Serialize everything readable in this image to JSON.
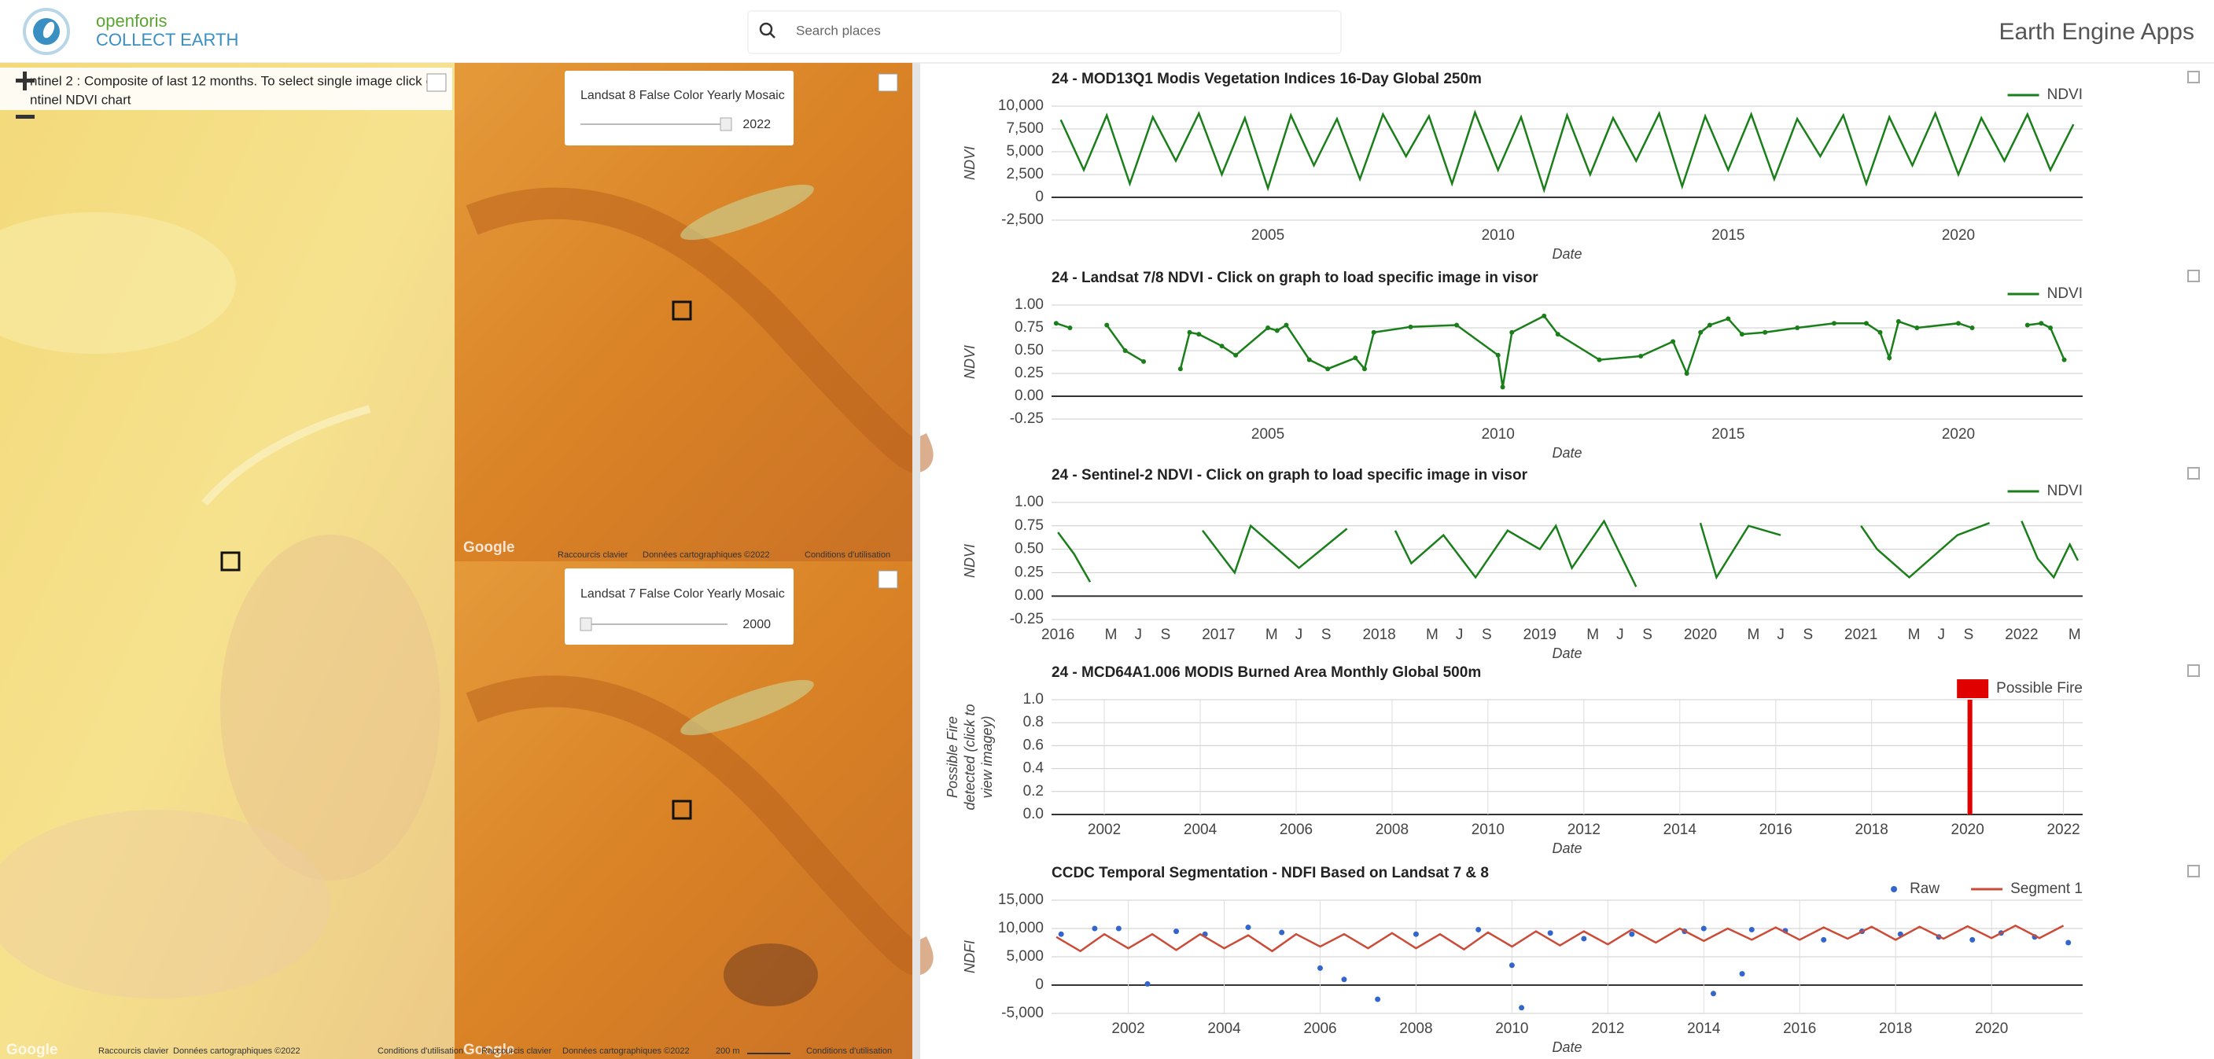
{
  "header": {
    "logo_top": "openforis",
    "logo_bottom": "COLLECT EARTH",
    "search_placeholder": "Search places",
    "app_name": "Earth Engine Apps"
  },
  "maps": [
    {
      "info": [
        "ntinel 2 : Composite of last 12 months. To select single image click c",
        "ntinel NDVI chart"
      ],
      "attribution": [
        "Google",
        "Raccourcis clavier",
        "Données cartographiques ©2022",
        "Conditions d'utilisation"
      ]
    },
    {
      "layer": "Landsat 8 False Color Yearly Mosaic",
      "year": 2022,
      "attribution": [
        "Google",
        "Raccourcis clavier",
        "Données cartographiques ©2022",
        "Conditions d'utilisation"
      ]
    },
    {
      "layer": "Landsat 7 False Color Yearly Mosaic",
      "year": 2000,
      "attribution": [
        "Google",
        "Raccourcis clavier",
        "Données cartographiques ©2022",
        "200 m",
        "Conditions d'utilisation"
      ]
    }
  ],
  "chart_data": [
    {
      "type": "line",
      "title": "24 - MOD13Q1 Modis Vegetation Indices 16-Day Global 250m",
      "xlabel": "Date",
      "ylabel": [
        "NDVI"
      ],
      "xlim": [
        2000.3,
        2022.7
      ],
      "xticks": [
        2005,
        2010,
        2015,
        2020
      ],
      "ylim": [
        -2500,
        10000
      ],
      "yticks": [
        {
          "value": -2500,
          "label": "-2,500"
        },
        0,
        {
          "value": 2500,
          "label": "2,500"
        },
        {
          "value": 5000,
          "label": "5,000"
        },
        {
          "value": 7500,
          "label": "7,500"
        },
        {
          "value": 10000,
          "label": "10,000"
        }
      ],
      "grid": true,
      "xgrid": false,
      "legend": "top-right",
      "series": [
        {
          "name": "NDVI",
          "color": "#1a7f1a",
          "type": "line",
          "x": [
            2000.5,
            2001,
            2001.5,
            2002,
            2002.5,
            2003,
            2003.5,
            2004,
            2004.5,
            2005,
            2005.5,
            2006,
            2006.5,
            2007,
            2007.5,
            2008,
            2008.5,
            2009,
            2009.5,
            2010,
            2010.5,
            2011,
            2011.5,
            2012,
            2012.5,
            2013,
            2013.5,
            2014,
            2014.5,
            2015,
            2015.5,
            2016,
            2016.5,
            2017,
            2017.5,
            2018,
            2018.5,
            2019,
            2019.5,
            2020,
            2020.5,
            2021,
            2021.5,
            2022,
            2022.5
          ],
          "values": [
            8500,
            3000,
            9000,
            1500,
            8800,
            4000,
            9200,
            2500,
            8700,
            1000,
            9000,
            3500,
            8600,
            2000,
            9100,
            4500,
            8900,
            1500,
            9300,
            3000,
            8800,
            800,
            9000,
            2500,
            8700,
            4000,
            9200,
            1200,
            8900,
            3000,
            9100,
            2000,
            8600,
            4500,
            9000,
            1500,
            8800,
            3500,
            9200,
            2500,
            8700,
            4000,
            9100,
            3000,
            8000
          ]
        }
      ]
    },
    {
      "type": "line",
      "title": "24 - Landsat 7/8 NDVI - Click on graph to load specific image in visor",
      "xlabel": "Date",
      "ylabel": [
        "NDVI"
      ],
      "xlim": [
        2000.3,
        2022.7
      ],
      "xticks": [
        2005,
        2010,
        2015,
        2020
      ],
      "ylim": [
        -0.25,
        1
      ],
      "yticks": [
        {
          "value": -0.25,
          "label": "-0.25"
        },
        {
          "value": 0,
          "label": "0.00"
        },
        {
          "value": 0.25,
          "label": "0.25"
        },
        {
          "value": 0.5,
          "label": "0.50"
        },
        {
          "value": 0.75,
          "label": "0.75"
        },
        {
          "value": 1,
          "label": "1.00"
        }
      ],
      "grid": true,
      "xgrid": false,
      "legend": "top-right",
      "series": [
        {
          "name": "NDVI",
          "color": "#1a7f1a",
          "type": "line",
          "markers": true,
          "x": [
            2000.4,
            2000.7,
            2001.0,
            2001.5,
            2001.9,
            2002.3,
            2002.7,
            2003.1,
            2003.3,
            2003.5,
            2004.0,
            2004.3,
            2005.0,
            2005.2,
            2005.4,
            2005.9,
            2006.3,
            2006.9,
            2007.1,
            2007.3,
            2008.1,
            2009.1,
            2010.0,
            2010.1,
            2010.3,
            2011.0,
            2011.3,
            2012.2,
            2013.1,
            2013.8,
            2014.1,
            2014.4,
            2014.6,
            2015.0,
            2015.3,
            2015.8,
            2016.5,
            2017.3,
            2018.0,
            2018.3,
            2018.5,
            2018.7,
            2019.1,
            2020.0,
            2020.3,
            2020.8,
            2021.5,
            2021.8,
            2022.0,
            2022.3
          ],
          "values": [
            0.8,
            0.75,
            null,
            0.78,
            0.5,
            0.38,
            null,
            0.3,
            0.7,
            0.68,
            0.55,
            0.45,
            0.75,
            0.72,
            0.78,
            0.4,
            0.3,
            0.42,
            0.3,
            0.7,
            0.76,
            0.78,
            0.45,
            0.1,
            0.7,
            0.88,
            0.68,
            0.4,
            0.44,
            0.6,
            0.25,
            0.7,
            0.78,
            0.85,
            0.68,
            0.7,
            0.75,
            0.8,
            0.8,
            0.7,
            0.42,
            0.82,
            0.75,
            0.8,
            0.75,
            null,
            0.78,
            0.8,
            0.75,
            0.4
          ]
        }
      ]
    },
    {
      "type": "line",
      "title": "24 - Sentinel-2 NDVI - Click on graph to load specific image in visor",
      "xlabel": "Date",
      "ylabel": [
        "NDVI"
      ],
      "xlim": [
        2015.96,
        2022.38
      ],
      "xticks": [
        2016,
        {
          "value": 2016.33,
          "label": "M"
        },
        {
          "value": 2016.5,
          "label": "J"
        },
        {
          "value": 2016.67,
          "label": "S"
        },
        2017,
        {
          "value": 2017.33,
          "label": "M"
        },
        {
          "value": 2017.5,
          "label": "J"
        },
        {
          "value": 2017.67,
          "label": "S"
        },
        2018,
        {
          "value": 2018.33,
          "label": "M"
        },
        {
          "value": 2018.5,
          "label": "J"
        },
        {
          "value": 2018.67,
          "label": "S"
        },
        2019,
        {
          "value": 2019.33,
          "label": "M"
        },
        {
          "value": 2019.5,
          "label": "J"
        },
        {
          "value": 2019.67,
          "label": "S"
        },
        2020,
        {
          "value": 2020.33,
          "label": "M"
        },
        {
          "value": 2020.5,
          "label": "J"
        },
        {
          "value": 2020.67,
          "label": "S"
        },
        2021,
        {
          "value": 2021.33,
          "label": "M"
        },
        {
          "value": 2021.5,
          "label": "J"
        },
        {
          "value": 2021.67,
          "label": "S"
        },
        2022,
        {
          "value": 2022.33,
          "label": "M"
        }
      ],
      "ylim": [
        -0.25,
        1
      ],
      "yticks": [
        {
          "value": -0.25,
          "label": "-0.25"
        },
        {
          "value": 0,
          "label": "0.00"
        },
        {
          "value": 0.25,
          "label": "0.25"
        },
        {
          "value": 0.5,
          "label": "0.50"
        },
        {
          "value": 0.75,
          "label": "0.75"
        },
        {
          "value": 1,
          "label": "1.00"
        }
      ],
      "grid": true,
      "xgrid": false,
      "legend": "top-right",
      "series": [
        {
          "name": "NDVI",
          "color": "#1a7f1a",
          "type": "line",
          "x": [
            2016.0,
            2016.1,
            2016.2,
            2016.5,
            2016.9,
            2017.1,
            2017.2,
            2017.5,
            2017.8,
            2018.0,
            2018.1,
            2018.2,
            2018.4,
            2018.6,
            2018.8,
            2019.0,
            2019.1,
            2019.2,
            2019.4,
            2019.6,
            2019.9,
            2020.0,
            2020.1,
            2020.3,
            2020.5,
            2020.9,
            2021.0,
            2021.1,
            2021.3,
            2021.6,
            2021.8,
            2021.9,
            2022.0,
            2022.1,
            2022.2,
            2022.3,
            2022.35
          ],
          "values": [
            0.68,
            0.45,
            0.15,
            null,
            0.7,
            0.25,
            0.75,
            0.3,
            0.72,
            null,
            0.7,
            0.35,
            0.65,
            0.2,
            0.7,
            0.5,
            0.75,
            0.3,
            0.8,
            0.1,
            null,
            0.78,
            0.2,
            0.75,
            0.65,
            null,
            0.75,
            0.5,
            0.2,
            0.65,
            0.78,
            null,
            0.8,
            0.4,
            0.2,
            0.55,
            0.38
          ]
        }
      ]
    },
    {
      "type": "bar",
      "title": "24 - MCD64A1.006 MODIS Burned Area Monthly Global 500m",
      "xlabel": "Date",
      "ylabel": [
        "Possible Fire",
        "detected (click to",
        "view imagey)"
      ],
      "xlim": [
        2000.9,
        2022.4
      ],
      "xticks": [
        2002,
        2004,
        2006,
        2008,
        2010,
        2012,
        2014,
        2016,
        2018,
        2020,
        2022
      ],
      "ylim": [
        0,
        1
      ],
      "yticks": [
        {
          "value": 0,
          "label": "0.0"
        },
        0.2,
        0.4,
        0.6,
        0.8,
        {
          "value": 1,
          "label": "1.0"
        }
      ],
      "grid": true,
      "xgrid": true,
      "legend": "top-right",
      "series": [
        {
          "name": "Possible Fire",
          "color": "#e00000",
          "type": "bar",
          "x": [
            2020.05
          ],
          "values": [
            1
          ]
        }
      ]
    },
    {
      "type": "line",
      "title": "CCDC Temporal Segmentation - NDFI Based on Landsat 7 & 8",
      "xlabel": "Date",
      "ylabel": [
        "NDFI"
      ],
      "xlim": [
        2000.4,
        2021.9
      ],
      "xticks": [
        2002,
        2004,
        2006,
        2008,
        2010,
        2012,
        2014,
        2016,
        2018,
        2020
      ],
      "ylim": [
        -5000,
        15000
      ],
      "yticks": [
        {
          "value": -5000,
          "label": "-5,000"
        },
        0,
        {
          "value": 5000,
          "label": "5,000"
        },
        {
          "value": 10000,
          "label": "10,000"
        },
        {
          "value": 15000,
          "label": "15,000"
        }
      ],
      "grid": true,
      "xgrid": true,
      "legend": "top-right",
      "series": [
        {
          "name": "Raw",
          "color": "#3366cc",
          "type": "scatter",
          "x": [
            2000.6,
            2001.3,
            2001.8,
            2002.4,
            2003.0,
            2003.6,
            2004.5,
            2005.2,
            2006.0,
            2006.5,
            2007.2,
            2008.0,
            2009.3,
            2010.0,
            2010.2,
            2010.8,
            2011.5,
            2012.5,
            2013.6,
            2014.0,
            2014.2,
            2014.8,
            2015.0,
            2015.7,
            2016.5,
            2017.3,
            2018.1,
            2018.9,
            2019.6,
            2020.2,
            2020.9,
            2021.6
          ],
          "values": [
            9000,
            10000,
            10000,
            200,
            9500,
            9000,
            10200,
            9300,
            3000,
            1000,
            -2500,
            9000,
            9800,
            3500,
            -4000,
            9200,
            8200,
            9000,
            9500,
            10000,
            -1500,
            2000,
            9800,
            9600,
            8000,
            9500,
            9000,
            8500,
            8000,
            9200,
            8500,
            7500
          ]
        },
        {
          "name": "Segment 1",
          "color": "#cc4b37",
          "type": "line",
          "x": [
            2000.5,
            2001,
            2001.5,
            2002,
            2002.5,
            2003,
            2003.5,
            2004,
            2004.5,
            2005,
            2005.5,
            2006,
            2006.5,
            2007,
            2007.5,
            2008,
            2008.5,
            2009,
            2009.5,
            2010,
            2010.5,
            2011,
            2011.5,
            2012,
            2012.5,
            2013,
            2013.5,
            2014,
            2014.5,
            2015,
            2015.5,
            2016,
            2016.5,
            2017,
            2017.5,
            2018,
            2018.5,
            2019,
            2019.5,
            2020,
            2020.5,
            2021,
            2021.5
          ],
          "values": [
            8500,
            6000,
            9000,
            6500,
            9000,
            6200,
            9000,
            6500,
            8800,
            6000,
            9000,
            6800,
            9000,
            6500,
            9200,
            6500,
            9000,
            6300,
            9300,
            6800,
            9500,
            7000,
            9500,
            7200,
            9800,
            7500,
            10000,
            7800,
            10000,
            8000,
            10200,
            8000,
            10200,
            8200,
            10300,
            8000,
            10300,
            8200,
            10400,
            8300,
            10500,
            8300,
            10500
          ]
        }
      ]
    }
  ]
}
